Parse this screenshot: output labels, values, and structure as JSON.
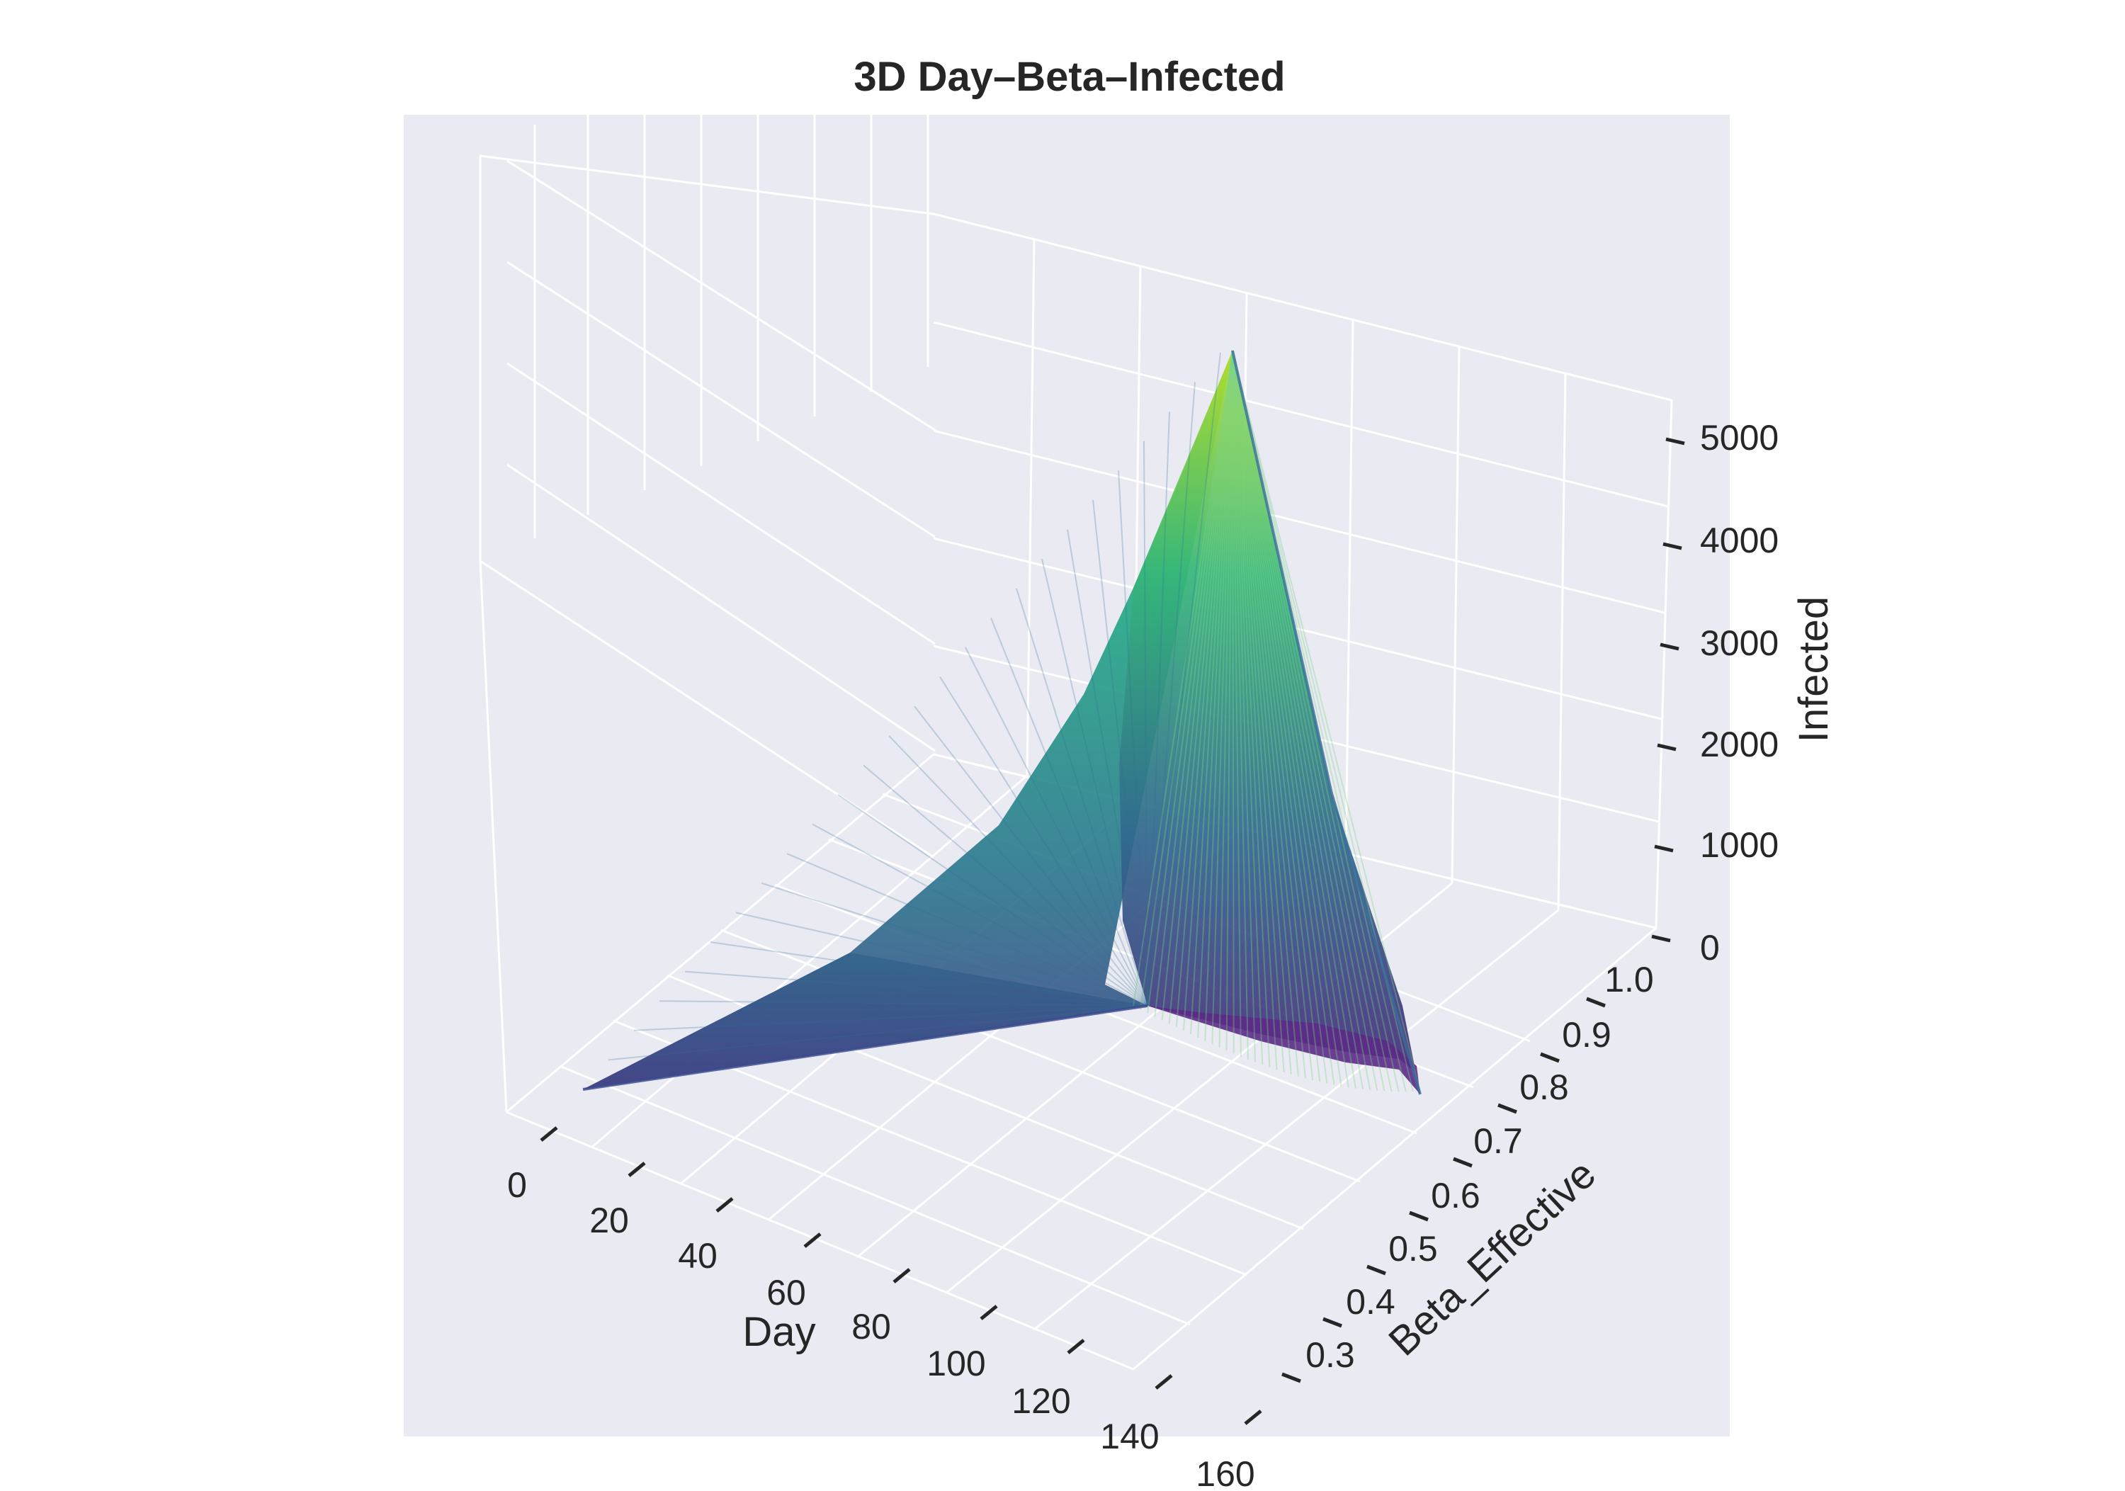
{
  "chart_data": {
    "type": "surface3d",
    "title": "3D Day–Beta–Infected",
    "xlabel": "Day",
    "ylabel": "Beta_Effective",
    "zlabel": "Infected",
    "x_ticks": [
      "0",
      "20",
      "40",
      "60",
      "80",
      "100",
      "120",
      "140",
      "160"
    ],
    "y_ticks": [
      "0.3",
      "0.4",
      "0.5",
      "0.6",
      "0.7",
      "0.8",
      "0.9",
      "1.0"
    ],
    "z_ticks": [
      "0",
      "1000",
      "2000",
      "3000",
      "4000",
      "5000"
    ],
    "xlim": [
      -5,
      165
    ],
    "ylim": [
      0.25,
      1.05
    ],
    "zlim": [
      0,
      5300
    ],
    "colormap": "viridis",
    "grid": true,
    "pane_color": "#eaeaf2",
    "surface_ridge": [
      {
        "day": 0,
        "beta": 0.3,
        "infected": 0
      },
      {
        "day": 40,
        "beta": 0.6,
        "infected": 400
      },
      {
        "day": 60,
        "beta": 0.75,
        "infected": 1100
      },
      {
        "day": 75,
        "beta": 0.85,
        "infected": 2400
      },
      {
        "day": 90,
        "beta": 0.95,
        "infected": 3800
      },
      {
        "day": 110,
        "beta": 1.0,
        "infected": 5200
      }
    ],
    "surface_base": [
      {
        "day": 0,
        "beta": 0.3,
        "infected": 0
      },
      {
        "day": 100,
        "beta": 0.3,
        "infected": 0
      },
      {
        "day": 160,
        "beta": 0.3,
        "infected": 0
      },
      {
        "day": 160,
        "beta": 0.35,
        "infected": 0
      },
      {
        "day": 150,
        "beta": 0.45,
        "infected": 0
      }
    ]
  }
}
